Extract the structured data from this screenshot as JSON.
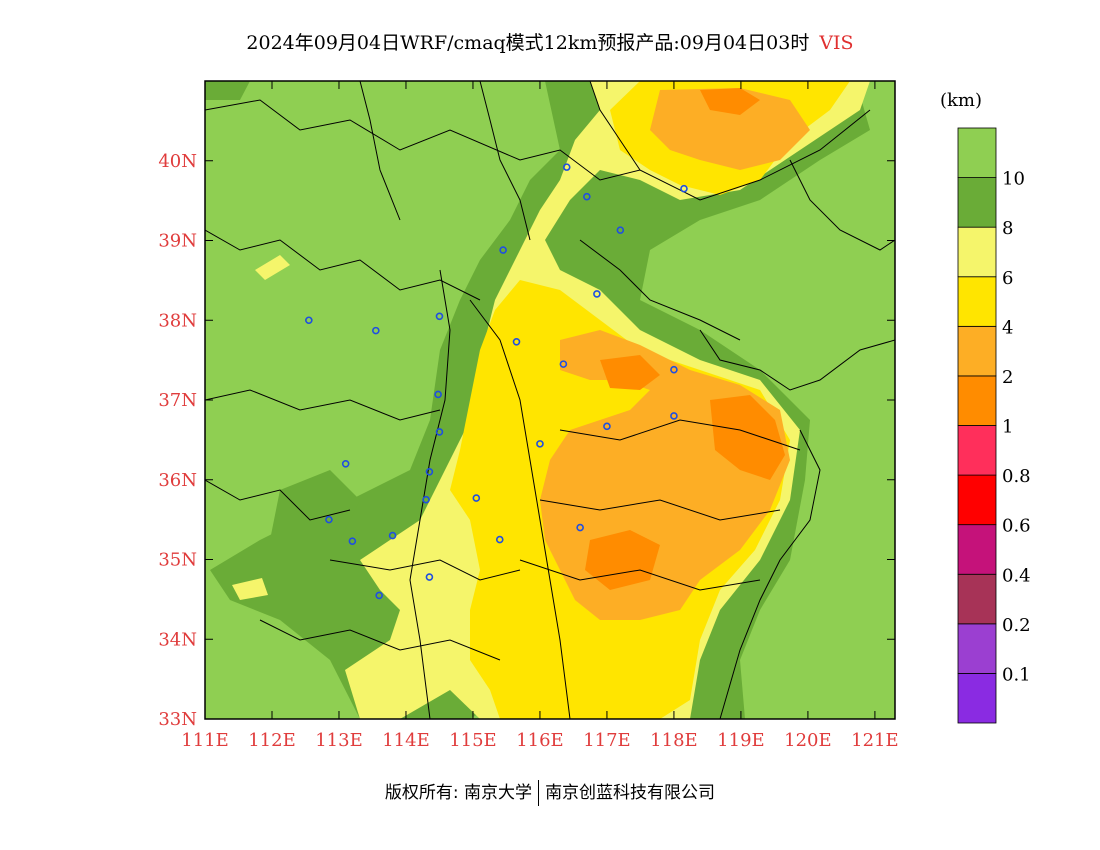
{
  "title": {
    "main": "2024年09月04日WRF/cmaq模式12km预报产品:09月04日03时",
    "variable": "VIS"
  },
  "colorbar": {
    "unit": "(km)",
    "colors": [
      "#8a2be2",
      "#9b3fd1",
      "#a73357",
      "#c5127a",
      "#ff0000",
      "#ff2f5b",
      "#ff8c00",
      "#fdae25",
      "#ffe500",
      "#f5f56b",
      "#6aac37",
      "#8fcf52"
    ],
    "labels": [
      "0.1",
      "0.2",
      "0.4",
      "0.6",
      "0.8",
      "1",
      "2",
      "4",
      "6",
      "8",
      "10"
    ]
  },
  "axes": {
    "lat_labels": [
      "33N",
      "34N",
      "35N",
      "36N",
      "37N",
      "38N",
      "39N",
      "40N"
    ],
    "lon_labels": [
      "111E",
      "112E",
      "113E",
      "114E",
      "115E",
      "116E",
      "117E",
      "118E",
      "119E",
      "120E",
      "121E"
    ],
    "lat_range": [
      33,
      41
    ],
    "lon_range": [
      111,
      121.3
    ]
  },
  "chart_data": {
    "type": "heatmap",
    "title": "2024年09月04日WRF/cmaq模式12km预报产品:09月04日03时 VIS",
    "xlabel": "",
    "ylabel": "",
    "xlim": [
      111,
      121.3
    ],
    "ylim": [
      33,
      41
    ],
    "units": "km",
    "levels": [
      0.1,
      0.2,
      0.4,
      0.6,
      0.8,
      1,
      2,
      4,
      6,
      8,
      10
    ]
  },
  "stations": [
    [
      112.55,
      38.0
    ],
    [
      113.55,
      37.87
    ],
    [
      114.5,
      38.05
    ],
    [
      115.45,
      38.88
    ],
    [
      116.4,
      39.92
    ],
    [
      116.7,
      39.55
    ],
    [
      117.2,
      39.13
    ],
    [
      118.15,
      39.65
    ],
    [
      116.85,
      38.33
    ],
    [
      115.65,
      37.73
    ],
    [
      116.35,
      37.45
    ],
    [
      118.0,
      37.38
    ],
    [
      114.48,
      37.07
    ],
    [
      114.5,
      36.6
    ],
    [
      114.35,
      36.1
    ],
    [
      116.0,
      36.45
    ],
    [
      117.0,
      36.67
    ],
    [
      118.0,
      36.8
    ],
    [
      113.1,
      36.2
    ],
    [
      114.3,
      35.75
    ],
    [
      115.05,
      35.77
    ],
    [
      115.4,
      35.25
    ],
    [
      116.6,
      35.4
    ],
    [
      112.85,
      35.5
    ],
    [
      113.2,
      35.23
    ],
    [
      113.8,
      35.3
    ],
    [
      114.35,
      34.78
    ],
    [
      113.6,
      34.55
    ]
  ],
  "copyright": {
    "left": "版权所有: 南京大学",
    "right": "南京创蓝科技有限公司"
  }
}
